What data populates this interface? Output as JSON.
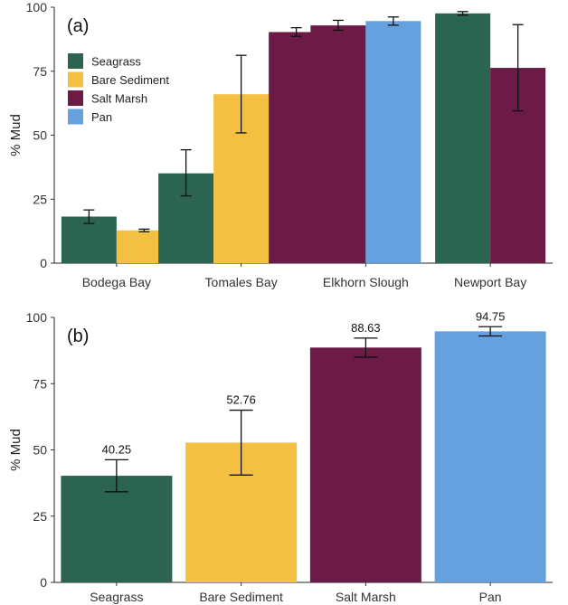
{
  "chart_data": [
    {
      "type": "bar",
      "panel_tag": "(a)",
      "ylabel": "% Mud",
      "xlabel": "",
      "ylim": [
        0,
        100
      ],
      "yticks": [
        0,
        25,
        50,
        75,
        100
      ],
      "categories": [
        "Bodega Bay",
        "Tomales Bay",
        "Elkhorn Slough",
        "Newport Bay"
      ],
      "legend": {
        "placement": "top-left",
        "entries": [
          "Seagrass",
          "Bare Sediment",
          "Salt Marsh",
          "Pan"
        ]
      },
      "series": [
        {
          "name": "Seagrass",
          "color": "#2b6450",
          "values": [
            18.2,
            35.1,
            null,
            97.6
          ],
          "errors": [
            [
              15.5,
              20.8
            ],
            [
              26.3,
              44.3
            ],
            null,
            [
              96.9,
              98.3
            ]
          ]
        },
        {
          "name": "Bare Sediment",
          "color": "#f4c042",
          "values": [
            12.8,
            66.0,
            null,
            null
          ],
          "errors": [
            [
              12.3,
              13.3
            ],
            [
              50.9,
              81.2
            ],
            null,
            null
          ]
        },
        {
          "name": "Salt Marsh",
          "color": "#6b1b45",
          "values": [
            null,
            90.3,
            92.9,
            76.3
          ],
          "errors": [
            null,
            [
              88.6,
              92.0
            ],
            [
              91.0,
              94.9
            ],
            [
              59.5,
              93.2
            ]
          ]
        },
        {
          "name": "Pan",
          "color": "#64a1de",
          "values": [
            null,
            null,
            94.6,
            null
          ],
          "errors": [
            null,
            null,
            [
              93.0,
              96.2
            ],
            null
          ]
        }
      ],
      "grid": false
    },
    {
      "type": "bar",
      "panel_tag": "(b)",
      "ylabel": "% Mud",
      "xlabel": "",
      "ylim": [
        0,
        100
      ],
      "yticks": [
        0,
        25,
        50,
        75,
        100
      ],
      "categories": [
        "Seagrass",
        "Bare Sediment",
        "Salt Marsh",
        "Pan"
      ],
      "colors": [
        "#2b6450",
        "#f4c042",
        "#6b1b45",
        "#64a1de"
      ],
      "values": [
        40.25,
        52.76,
        88.63,
        94.75
      ],
      "value_labels": [
        "40.25",
        "52.76",
        "88.63",
        "94.75"
      ],
      "errors": [
        [
          34.2,
          46.3
        ],
        [
          40.5,
          65.0
        ],
        [
          85.0,
          92.2
        ],
        [
          93.0,
          96.5
        ]
      ],
      "grid": false
    }
  ]
}
